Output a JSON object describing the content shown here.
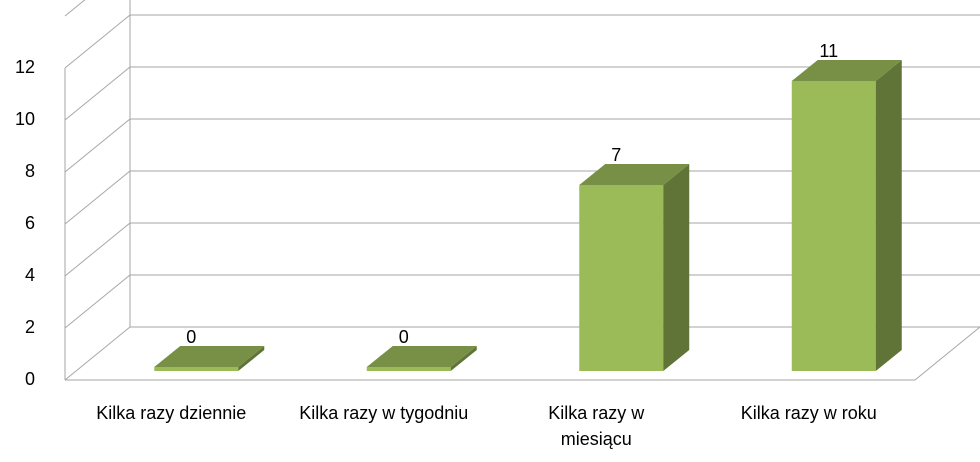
{
  "chart_data": {
    "type": "bar3d",
    "categories": [
      "Kilka razy dziennie",
      "Kilka razy w tygodniu",
      "Kilka razy w miesiącu",
      "Kilka razy w roku"
    ],
    "values": [
      0,
      0,
      7,
      11
    ],
    "color": "#9bbb59",
    "ylim": [
      0,
      12
    ],
    "yticks": [
      0,
      2,
      4,
      6,
      8,
      10,
      12
    ],
    "grid": true
  }
}
